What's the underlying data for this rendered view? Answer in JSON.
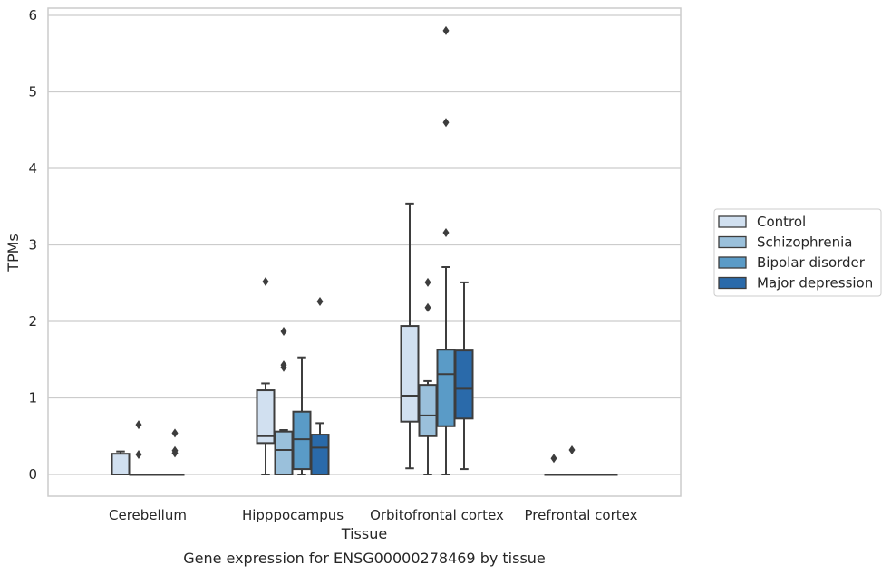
{
  "chart_data": {
    "type": "box",
    "xlabel": "Tissue",
    "ylabel": "TPMs",
    "caption": "Gene expression for ENSG00000278469 by tissue",
    "ylim": [
      -0.28,
      6.1
    ],
    "yticks": [
      0,
      1,
      2,
      3,
      4,
      5,
      6
    ],
    "grid": true,
    "legend_position": "right",
    "categories": [
      "Cerebellum",
      "Hipppocampus",
      "Orbitofrontal cortex",
      "Prefrontal cortex"
    ],
    "series": [
      {
        "name": "Control",
        "color": "#d1e0f0",
        "boxes": [
          {
            "whislo": 0.0,
            "q1": 0.0,
            "med": 0.0,
            "q3": 0.27,
            "whishi": 0.3,
            "fliers": []
          },
          {
            "whislo": 0.0,
            "q1": 0.41,
            "med": 0.5,
            "q3": 1.1,
            "whishi": 1.19,
            "fliers": [
              2.52
            ]
          },
          {
            "whislo": 0.08,
            "q1": 0.69,
            "med": 1.03,
            "q3": 1.94,
            "whishi": 3.54,
            "fliers": []
          },
          {
            "whislo": 0.0,
            "q1": 0.0,
            "med": 0.0,
            "q3": 0.0,
            "whishi": 0.0,
            "fliers": [
              0.21
            ]
          }
        ]
      },
      {
        "name": "Schizophrenia",
        "color": "#9ac0db",
        "boxes": [
          {
            "whislo": 0.0,
            "q1": 0.0,
            "med": 0.0,
            "q3": 0.0,
            "whishi": 0.0,
            "fliers": [
              0.65,
              0.26
            ]
          },
          {
            "whislo": 0.0,
            "q1": 0.0,
            "med": 0.32,
            "q3": 0.56,
            "whishi": 0.58,
            "fliers": [
              1.87,
              1.43,
              1.4
            ]
          },
          {
            "whislo": 0.0,
            "q1": 0.5,
            "med": 0.77,
            "q3": 1.17,
            "whishi": 1.22,
            "fliers": [
              2.51,
              2.18
            ]
          },
          {
            "whislo": 0.0,
            "q1": 0.0,
            "med": 0.0,
            "q3": 0.0,
            "whishi": 0.0,
            "fliers": [
              0.32
            ]
          }
        ]
      },
      {
        "name": "Bipolar disorder",
        "color": "#5a9bc7",
        "boxes": [
          {
            "whislo": 0.0,
            "q1": 0.0,
            "med": 0.0,
            "q3": 0.0,
            "whishi": 0.0,
            "fliers": []
          },
          {
            "whislo": 0.0,
            "q1": 0.07,
            "med": 0.46,
            "q3": 0.82,
            "whishi": 1.53,
            "fliers": []
          },
          {
            "whislo": 0.0,
            "q1": 0.63,
            "med": 1.31,
            "q3": 1.63,
            "whishi": 2.71,
            "fliers": [
              5.8,
              4.6,
              3.16
            ]
          },
          {
            "whislo": 0.0,
            "q1": 0.0,
            "med": 0.0,
            "q3": 0.0,
            "whishi": 0.0,
            "fliers": []
          }
        ]
      },
      {
        "name": "Major depression",
        "color": "#2a6aaa",
        "boxes": [
          {
            "whislo": 0.0,
            "q1": 0.0,
            "med": 0.0,
            "q3": 0.0,
            "whishi": 0.0,
            "fliers": [
              0.54,
              0.31,
              0.28
            ]
          },
          {
            "whislo": 0.0,
            "q1": 0.0,
            "med": 0.35,
            "q3": 0.52,
            "whishi": 0.67,
            "fliers": [
              2.26
            ]
          },
          {
            "whislo": 0.07,
            "q1": 0.73,
            "med": 1.12,
            "q3": 1.62,
            "whishi": 2.51,
            "fliers": []
          },
          {
            "whislo": 0.0,
            "q1": 0.0,
            "med": 0.0,
            "q3": 0.0,
            "whishi": 0.0,
            "fliers": []
          }
        ]
      }
    ]
  }
}
